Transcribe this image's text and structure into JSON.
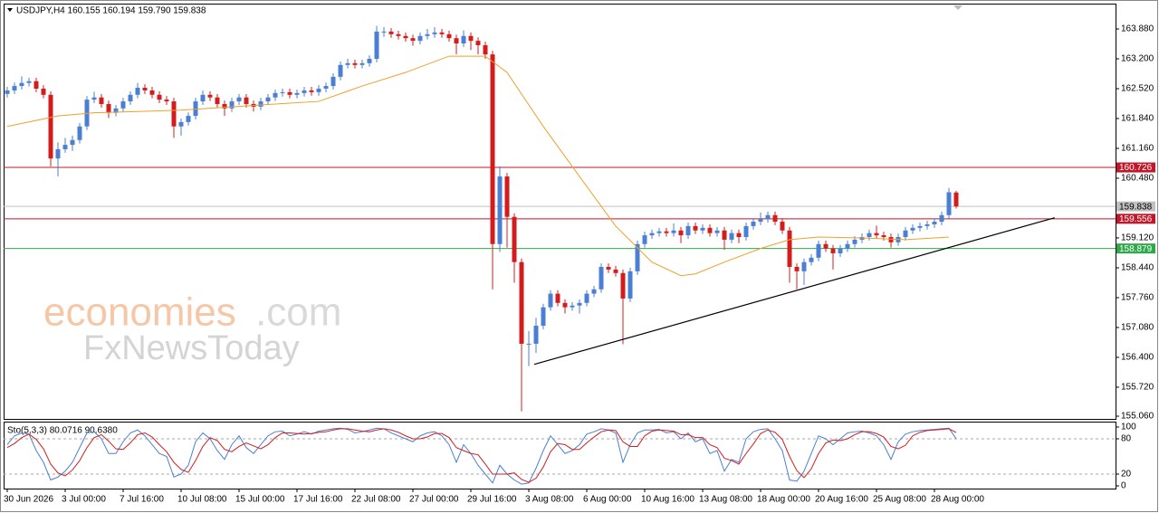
{
  "chart_data": {
    "type": "candlestick",
    "title": "USDJPY,H4  160.155 160.194 159.790 159.838",
    "categories": [
      "30 Jun 2026",
      null,
      null,
      null,
      null,
      null,
      null,
      null,
      "3 Jul 00:00",
      null,
      null,
      null,
      null,
      null,
      null,
      null,
      "7 Jul 16:00",
      null,
      null,
      null,
      null,
      null,
      null,
      null,
      "10 Jul 08:00",
      null,
      null,
      null,
      null,
      null,
      null,
      null,
      "15 Jul 00:00",
      null,
      null,
      null,
      null,
      null,
      null,
      null,
      "17 Jul 16:00",
      null,
      null,
      null,
      null,
      null,
      null,
      null,
      "22 Jul 08:00",
      null,
      null,
      null,
      null,
      null,
      null,
      null,
      "27 Jul 00:00",
      null,
      null,
      null,
      null,
      null,
      null,
      null,
      "29 Jul 16:00",
      null,
      null,
      null,
      null,
      null,
      null,
      null,
      "3 Aug 08:00",
      null,
      null,
      null,
      null,
      null,
      null,
      null,
      "6 Aug 00:00",
      null,
      null,
      null,
      null,
      null,
      null,
      null,
      "10 Aug 16:00",
      null,
      null,
      null,
      null,
      null,
      null,
      null,
      "13 Aug 08:00",
      null,
      null,
      null,
      null,
      null,
      null,
      null,
      "18 Aug 00:00",
      null,
      null,
      null,
      null,
      null,
      null,
      null,
      "20 Aug 16:00",
      null,
      null,
      null,
      null,
      null,
      null,
      null,
      "25 Aug 08:00",
      null,
      null,
      null,
      null,
      null,
      null,
      null,
      "28 Aug 00:00",
      null,
      null,
      null
    ],
    "open": [
      162.4,
      162.48,
      162.58,
      162.65,
      162.69,
      162.52,
      162.38,
      160.93,
      161.14,
      161.24,
      161.35,
      161.66,
      162.27,
      162.32,
      162.17,
      161.97,
      162.07,
      162.23,
      162.38,
      162.54,
      162.48,
      162.38,
      162.27,
      162.23,
      161.66,
      161.76,
      161.9,
      162.23,
      162.38,
      162.32,
      162.17,
      162.07,
      162.23,
      162.32,
      162.17,
      162.11,
      162.23,
      162.32,
      162.42,
      162.44,
      162.38,
      162.42,
      162.48,
      162.44,
      162.52,
      162.58,
      162.79,
      163.06,
      163.1,
      163.06,
      163.1,
      163.2,
      163.82,
      163.82,
      163.76,
      163.72,
      163.67,
      163.61,
      163.72,
      163.76,
      163.8,
      163.76,
      163.67,
      163.55,
      163.72,
      163.61,
      163.51,
      163.3,
      158.98,
      160.52,
      159.6,
      158.57,
      156.71,
      156.71,
      157.12,
      157.54,
      157.85,
      157.64,
      157.54,
      157.58,
      157.64,
      157.85,
      157.95,
      158.46,
      158.4,
      158.32,
      157.74,
      158.36,
      158.98,
      159.18,
      159.23,
      159.27,
      159.23,
      159.29,
      159.18,
      159.39,
      159.29,
      159.35,
      159.23,
      159.29,
      159.08,
      159.23,
      159.14,
      159.39,
      159.49,
      159.55,
      159.64,
      159.49,
      159.29,
      158.46,
      158.36,
      158.57,
      158.67,
      158.98,
      158.88,
      158.77,
      158.88,
      158.98,
      159.08,
      159.14,
      159.23,
      159.18,
      159.14,
      159.02,
      159.14,
      159.29,
      159.35,
      159.39,
      159.43,
      159.49,
      159.64,
      160.155
    ],
    "high": [
      162.56,
      162.66,
      162.8,
      162.77,
      162.77,
      162.6,
      162.46,
      161.3,
      161.4,
      161.45,
      161.74,
      162.35,
      162.45,
      162.4,
      162.25,
      162.15,
      162.31,
      162.46,
      162.65,
      162.62,
      162.56,
      162.46,
      162.35,
      162.31,
      161.84,
      161.98,
      162.31,
      162.48,
      162.46,
      162.4,
      162.25,
      162.31,
      162.4,
      162.4,
      162.25,
      162.31,
      162.4,
      162.5,
      162.52,
      162.52,
      162.5,
      162.56,
      162.56,
      162.6,
      162.66,
      162.87,
      163.14,
      163.2,
      163.18,
      163.18,
      163.28,
      163.95,
      163.92,
      163.9,
      163.84,
      163.8,
      163.75,
      163.8,
      163.88,
      163.92,
      163.88,
      163.84,
      163.75,
      163.85,
      163.8,
      163.69,
      163.59,
      163.38,
      160.75,
      160.6,
      159.68,
      158.65,
      157.0,
      157.3,
      157.62,
      157.93,
      157.93,
      157.72,
      157.66,
      157.72,
      157.93,
      158.03,
      158.54,
      158.54,
      158.48,
      158.4,
      158.44,
      159.06,
      159.26,
      159.31,
      159.35,
      159.35,
      159.45,
      159.37,
      159.47,
      159.47,
      159.43,
      159.43,
      159.37,
      159.37,
      159.31,
      159.31,
      159.47,
      159.57,
      159.7,
      159.72,
      159.72,
      159.57,
      159.37,
      158.54,
      158.65,
      158.75,
      159.06,
      159.06,
      158.96,
      158.96,
      159.06,
      159.16,
      159.22,
      159.31,
      159.4,
      159.26,
      159.22,
      159.22,
      159.37,
      159.43,
      159.47,
      159.51,
      159.57,
      159.72,
      160.26,
      160.194
    ],
    "low": [
      162.32,
      162.4,
      162.5,
      162.57,
      162.44,
      162.3,
      160.75,
      160.52,
      161.06,
      161.1,
      161.27,
      161.58,
      162.19,
      162.09,
      161.85,
      161.89,
      161.99,
      162.15,
      162.3,
      162.4,
      162.3,
      162.19,
      162.15,
      161.4,
      161.45,
      161.68,
      161.82,
      162.15,
      162.24,
      162.09,
      161.9,
      161.99,
      162.15,
      162.09,
      162.0,
      162.03,
      162.15,
      162.24,
      162.34,
      162.3,
      162.3,
      162.34,
      162.36,
      162.36,
      162.44,
      162.5,
      162.71,
      162.98,
      162.98,
      162.98,
      163.02,
      163.12,
      163.7,
      163.68,
      163.64,
      163.59,
      163.5,
      163.53,
      163.64,
      163.68,
      163.68,
      163.59,
      163.3,
      163.47,
      163.4,
      163.3,
      163.2,
      157.95,
      158.8,
      158.9,
      158.1,
      155.17,
      156.2,
      156.5,
      157.04,
      157.46,
      157.56,
      157.4,
      157.46,
      157.4,
      157.56,
      157.77,
      157.87,
      158.32,
      158.24,
      156.7,
      157.66,
      158.28,
      158.9,
      159.1,
      159.15,
      159.15,
      159.15,
      159.0,
      159.1,
      159.21,
      159.21,
      159.15,
      159.15,
      158.85,
      159.0,
      159.0,
      159.06,
      159.31,
      159.41,
      159.47,
      159.41,
      159.21,
      158.1,
      157.95,
      158.05,
      158.49,
      158.59,
      158.8,
      158.4,
      158.69,
      158.8,
      158.9,
      159.0,
      159.06,
      159.1,
      159.06,
      158.9,
      158.94,
      159.06,
      159.21,
      159.27,
      159.31,
      159.35,
      159.41,
      159.56,
      159.79
    ],
    "close": [
      162.48,
      162.58,
      162.65,
      162.69,
      162.52,
      162.38,
      160.93,
      161.14,
      161.24,
      161.35,
      161.66,
      162.27,
      162.32,
      162.17,
      161.97,
      162.07,
      162.23,
      162.38,
      162.54,
      162.48,
      162.38,
      162.27,
      162.23,
      161.66,
      161.76,
      161.9,
      162.23,
      162.38,
      162.32,
      162.17,
      162.07,
      162.23,
      162.32,
      162.17,
      162.11,
      162.23,
      162.32,
      162.42,
      162.44,
      162.38,
      162.42,
      162.48,
      162.44,
      162.52,
      162.58,
      162.79,
      163.06,
      163.1,
      163.06,
      163.1,
      163.2,
      163.82,
      163.82,
      163.76,
      163.72,
      163.67,
      163.61,
      163.72,
      163.76,
      163.8,
      163.76,
      163.67,
      163.55,
      163.72,
      163.61,
      163.51,
      163.3,
      158.98,
      160.52,
      159.6,
      158.57,
      156.71,
      156.71,
      157.12,
      157.54,
      157.85,
      157.64,
      157.54,
      157.58,
      157.64,
      157.85,
      157.95,
      158.46,
      158.4,
      158.32,
      157.74,
      158.36,
      158.98,
      159.18,
      159.23,
      159.27,
      159.23,
      159.29,
      159.18,
      159.39,
      159.29,
      159.35,
      159.23,
      159.29,
      159.08,
      159.23,
      159.14,
      159.39,
      159.49,
      159.55,
      159.64,
      159.49,
      159.29,
      158.46,
      158.36,
      158.57,
      158.67,
      158.98,
      158.88,
      158.77,
      158.88,
      158.98,
      159.08,
      159.14,
      159.23,
      159.18,
      159.14,
      159.02,
      159.14,
      159.29,
      159.35,
      159.39,
      159.43,
      159.49,
      159.64,
      160.16,
      159.838
    ],
    "up_color": "#4a7fd4",
    "down_color": "#d41c1c",
    "ylim": [
      154.998,
      164.457
    ],
    "yticks": [
      {
        "value": 163.88,
        "label": "163.880"
      },
      {
        "value": 163.2,
        "label": "163.200"
      },
      {
        "value": 162.52,
        "label": "162.520"
      },
      {
        "value": 161.84,
        "label": "161.840"
      },
      {
        "value": 161.16,
        "label": "161.160"
      },
      {
        "value": 160.48,
        "label": "160.480"
      },
      {
        "value": 159.12,
        "label": "159.120"
      },
      {
        "value": 158.44,
        "label": "158.440"
      },
      {
        "value": 157.76,
        "label": "157.760"
      },
      {
        "value": 157.08,
        "label": "157.080"
      },
      {
        "value": 156.4,
        "label": "156.400"
      },
      {
        "value": 155.72,
        "label": "155.720"
      },
      {
        "value": 155.06,
        "label": "155.060"
      }
    ],
    "overlay": {
      "color": "#f0a02a",
      "x": [
        0,
        7,
        12,
        24,
        37,
        43,
        49,
        55,
        61,
        66,
        69,
        74,
        79,
        84,
        89,
        93,
        95,
        99,
        104,
        108,
        112,
        118,
        124,
        130
      ],
      "values": [
        161.66,
        161.9,
        161.97,
        162.03,
        162.17,
        162.23,
        162.58,
        162.89,
        163.26,
        163.26,
        162.89,
        161.66,
        160.52,
        159.39,
        158.57,
        158.26,
        158.3,
        158.57,
        158.88,
        159.08,
        159.14,
        159.12,
        159.08,
        159.14
      ]
    },
    "trendline": {
      "color": "#000000",
      "x": [
        72.75,
        144.6
      ],
      "values": [
        156.24,
        159.58
      ]
    },
    "levels": [
      {
        "value": 160.726,
        "color": "#c0182a",
        "text_color": "#ffffff"
      },
      {
        "value": 159.838,
        "color": "#c0c0c0",
        "text_color": "#000000"
      },
      {
        "value": 159.556,
        "color": "#c0182a",
        "text_color": "#ffffff"
      },
      {
        "value": 158.879,
        "color": "#2ea84a",
        "text_color": "#ffffff"
      }
    ],
    "watermark": [
      "economies",
      ".com",
      "FxNewsToday"
    ],
    "stochastic": {
      "label": "Sto(5,3,3) 80.0716 90.6380",
      "ylim": [
        -4.6,
        109.2
      ],
      "yticks": [
        0,
        20,
        80,
        100
      ],
      "levels": [
        20,
        80
      ],
      "series": [
        {
          "color": "#4a7fd4",
          "values": [
            70,
            85,
            90,
            88,
            60,
            40,
            10,
            15,
            25,
            40,
            65,
            90,
            92,
            80,
            55,
            55,
            75,
            90,
            95,
            85,
            70,
            55,
            50,
            15,
            20,
            35,
            75,
            90,
            80,
            60,
            45,
            70,
            85,
            65,
            55,
            70,
            85,
            92,
            93,
            85,
            88,
            92,
            88,
            93,
            95,
            97,
            98,
            96,
            90,
            92,
            95,
            98,
            97,
            90,
            85,
            80,
            75,
            85,
            90,
            92,
            85,
            70,
            40,
            70,
            55,
            35,
            20,
            5,
            35,
            20,
            10,
            3,
            5,
            30,
            60,
            85,
            70,
            55,
            60,
            70,
            88,
            92,
            97,
            95,
            90,
            40,
            70,
            90,
            95,
            95,
            96,
            90,
            92,
            80,
            90,
            75,
            80,
            55,
            60,
            25,
            45,
            40,
            80,
            92,
            96,
            97,
            80,
            60,
            10,
            8,
            25,
            55,
            85,
            80,
            70,
            80,
            90,
            92,
            93,
            90,
            85,
            70,
            45,
            75,
            88,
            92,
            94,
            95,
            96,
            97,
            98,
            80.0716
          ]
        },
        {
          "color": "#d41c1c",
          "values": [
            65,
            72,
            82,
            88,
            79,
            63,
            37,
            22,
            17,
            27,
            43,
            65,
            82,
            87,
            76,
            63,
            62,
            73,
            87,
            90,
            83,
            70,
            58,
            40,
            28,
            23,
            43,
            67,
            82,
            77,
            62,
            58,
            67,
            73,
            68,
            63,
            70,
            82,
            90,
            90,
            89,
            88,
            89,
            91,
            92,
            95,
            97,
            97,
            95,
            93,
            92,
            95,
            97,
            95,
            91,
            85,
            80,
            80,
            83,
            89,
            89,
            82,
            65,
            60,
            55,
            53,
            37,
            20,
            20,
            20,
            22,
            11,
            6,
            13,
            32,
            58,
            72,
            70,
            62,
            62,
            73,
            83,
            92,
            95,
            94,
            75,
            67,
            67,
            85,
            93,
            95,
            94,
            93,
            87,
            87,
            82,
            82,
            70,
            65,
            47,
            43,
            37,
            55,
            71,
            89,
            95,
            91,
            79,
            50,
            26,
            14,
            29,
            55,
            73,
            78,
            77,
            80,
            87,
            92,
            92,
            89,
            83,
            67,
            63,
            69,
            85,
            91,
            94,
            95,
            96,
            97,
            90.638
          ]
        }
      ]
    }
  }
}
